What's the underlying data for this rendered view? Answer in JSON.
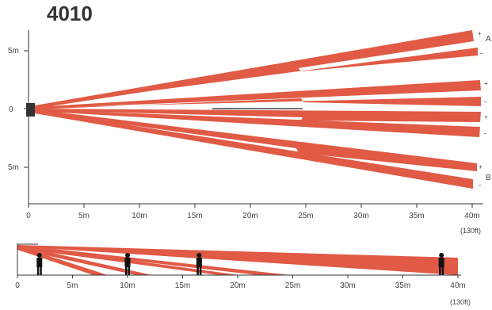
{
  "title": "4010",
  "colors": {
    "beam": "#E05A45",
    "axis": "#333333",
    "sensor": "#333333"
  },
  "top_view": {
    "y_labels": {
      "upper": "5m",
      "center": "0",
      "lower": "5m"
    },
    "x_ticks": [
      "0",
      "5m",
      "10m",
      "15m",
      "20m",
      "25m",
      "30m",
      "35m",
      "40m"
    ],
    "x_end_unit": "(130ft)",
    "zone_labels": {
      "a": "A",
      "b": "B"
    },
    "polarity": {
      "plus": "+",
      "minus": "−"
    }
  },
  "side_view": {
    "x_ticks": [
      "0",
      "5m",
      "10m",
      "15m",
      "20m",
      "25m",
      "30m",
      "35m",
      "40m"
    ],
    "x_end_unit": "(130ft)",
    "person_positions_m": [
      2,
      10,
      16.5,
      38.5
    ]
  }
}
